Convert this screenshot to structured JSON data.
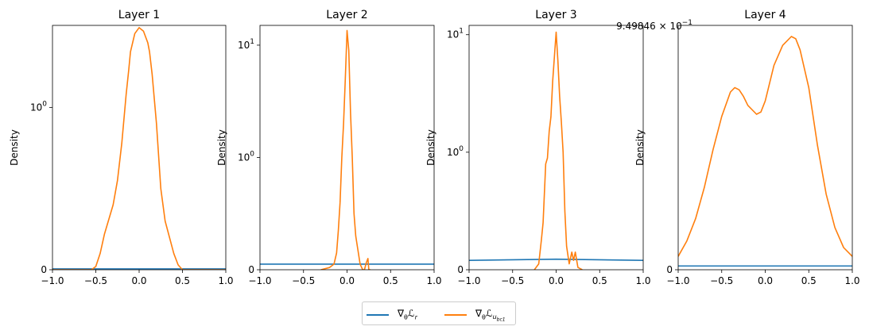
{
  "figure": {
    "density_label": "Density",
    "series_names": [
      "∇θℒr",
      "∇θℒubc1"
    ]
  },
  "colors": {
    "series0": "#1f77b4",
    "series1": "#ff7f0e",
    "axis": "#000000"
  },
  "legend": {
    "items": [
      {
        "base": "∇",
        "sub1": "θ",
        "main": "ℒ",
        "sub2": "r",
        "sub3": ""
      },
      {
        "base": "∇",
        "sub1": "θ",
        "main": "ℒ",
        "sub2": "u",
        "sub3": "bc1"
      }
    ],
    "placement": "bottom-center"
  },
  "chart_data": [
    {
      "type": "line",
      "title": "Layer 1",
      "xlabel": "",
      "ylabel": "Density",
      "xlim": [
        -1.0,
        1.0
      ],
      "xticks": [
        -1.0,
        -0.5,
        0.0,
        0.5,
        1.0
      ],
      "xtick_labels": [
        "−1.0",
        "−0.5",
        "0.0",
        "0.5",
        "1.0"
      ],
      "yscale": "symlog",
      "ylim": [
        0,
        3.2
      ],
      "yticks": [
        0,
        1
      ],
      "ytick_labels": [
        "0",
        "10^0"
      ],
      "grid": false,
      "series": [
        {
          "x": [
            -1.0,
            -0.5,
            0.0,
            0.5,
            1.0
          ],
          "y": [
            0.005,
            0.005,
            0.005,
            0.005,
            0.005
          ]
        },
        {
          "x": [
            -1.0,
            -0.55,
            -0.5,
            -0.45,
            -0.4,
            -0.3,
            -0.25,
            -0.2,
            -0.15,
            -0.12,
            -0.1,
            -0.05,
            0.0,
            0.05,
            0.1,
            0.12,
            0.15,
            0.2,
            0.25,
            0.3,
            0.4,
            0.45,
            0.5,
            1.0
          ],
          "y": [
            0.0,
            0.0,
            0.02,
            0.1,
            0.22,
            0.4,
            0.55,
            0.78,
            1.2,
            1.7,
            2.2,
            2.85,
            3.1,
            2.95,
            2.5,
            2.2,
            1.6,
            0.9,
            0.5,
            0.3,
            0.1,
            0.03,
            0.0,
            0.0
          ]
        }
      ]
    },
    {
      "type": "line",
      "title": "Layer 2",
      "xlabel": "",
      "ylabel": "Density",
      "xlim": [
        -1.0,
        1.0
      ],
      "xticks": [
        -1.0,
        -0.5,
        0.0,
        0.5,
        1.0
      ],
      "xtick_labels": [
        "−1.0",
        "−0.5",
        "0.0",
        "0.5",
        "1.0"
      ],
      "yscale": "symlog",
      "ylim": [
        0,
        15
      ],
      "yticks": [
        0,
        1,
        10
      ],
      "ytick_labels": [
        "0",
        "10^0",
        "10^1"
      ],
      "grid": false,
      "series": [
        {
          "x": [
            -1.0,
            -0.5,
            0.0,
            0.5,
            1.0
          ],
          "y": [
            0.05,
            0.05,
            0.05,
            0.05,
            0.05
          ]
        },
        {
          "x": [
            -0.3,
            -0.2,
            -0.15,
            -0.12,
            -0.1,
            -0.08,
            -0.06,
            -0.04,
            -0.02,
            0.0,
            0.02,
            0.04,
            0.06,
            0.08,
            0.1,
            0.12,
            0.15,
            0.18,
            0.2,
            0.22,
            0.24,
            0.25,
            0.27
          ],
          "y": [
            0.0,
            0.02,
            0.05,
            0.15,
            0.35,
            0.6,
            1.0,
            2.0,
            5.0,
            13.5,
            9.0,
            2.5,
            1.0,
            0.5,
            0.3,
            0.2,
            0.05,
            0.0,
            0.0,
            0.06,
            0.1,
            0.0,
            0.0
          ]
        }
      ]
    },
    {
      "type": "line",
      "title": "Layer 3",
      "xlabel": "",
      "ylabel": "Density",
      "xlim": [
        -1.0,
        1.0
      ],
      "xticks": [
        -1.0,
        -0.5,
        0.0,
        0.5,
        1.0
      ],
      "xtick_labels": [
        "−1.0",
        "−0.5",
        "0.0",
        "0.5",
        "1.0"
      ],
      "yscale": "symlog",
      "ylim": [
        0,
        12
      ],
      "yticks": [
        0,
        1,
        10
      ],
      "ytick_labels": [
        "0",
        "10^0",
        "10^1"
      ],
      "grid": false,
      "series": [
        {
          "x": [
            -1.0,
            -0.5,
            0.0,
            0.5,
            1.0
          ],
          "y": [
            0.08,
            0.085,
            0.09,
            0.085,
            0.08
          ]
        },
        {
          "x": [
            -0.25,
            -0.2,
            -0.17,
            -0.15,
            -0.12,
            -0.1,
            -0.08,
            -0.06,
            -0.04,
            -0.02,
            0.0,
            0.02,
            0.04,
            0.06,
            0.08,
            0.1,
            0.12,
            0.15,
            0.18,
            0.2,
            0.22,
            0.25,
            0.3
          ],
          "y": [
            0.0,
            0.05,
            0.25,
            0.4,
            0.9,
            0.95,
            1.5,
            2.0,
            4.0,
            6.5,
            10.5,
            6.0,
            3.0,
            1.8,
            1.0,
            0.5,
            0.2,
            0.05,
            0.15,
            0.08,
            0.15,
            0.02,
            0.0
          ]
        }
      ]
    },
    {
      "type": "line",
      "title": "Layer 4",
      "xlabel": "",
      "ylabel": "Density",
      "offset_text": "9.49846 × 10^−1",
      "xlim": [
        -1.0,
        1.0
      ],
      "xticks": [
        -1.0,
        -0.5,
        0.0,
        0.5,
        1.0
      ],
      "xtick_labels": [
        "−1.0",
        "−0.5",
        "0.0",
        "0.5",
        "1.0"
      ],
      "yscale": "linear",
      "ylim": [
        0,
        1.1
      ],
      "yticks": [
        0
      ],
      "ytick_labels": [
        "0"
      ],
      "grid": false,
      "series": [
        {
          "x": [
            -1.0,
            -0.5,
            0.0,
            0.5,
            1.0
          ],
          "y": [
            0.017,
            0.017,
            0.017,
            0.017,
            0.017
          ]
        },
        {
          "x": [
            -1.0,
            -0.9,
            -0.8,
            -0.7,
            -0.6,
            -0.5,
            -0.4,
            -0.35,
            -0.3,
            -0.25,
            -0.2,
            -0.1,
            -0.05,
            0.0,
            0.05,
            0.1,
            0.2,
            0.3,
            0.35,
            0.4,
            0.5,
            0.6,
            0.7,
            0.8,
            0.9,
            1.0
          ],
          "y": [
            0.06,
            0.13,
            0.23,
            0.37,
            0.54,
            0.69,
            0.8,
            0.82,
            0.81,
            0.78,
            0.74,
            0.7,
            0.71,
            0.76,
            0.84,
            0.92,
            1.01,
            1.05,
            1.04,
            0.99,
            0.82,
            0.56,
            0.34,
            0.19,
            0.1,
            0.06
          ]
        }
      ]
    }
  ]
}
